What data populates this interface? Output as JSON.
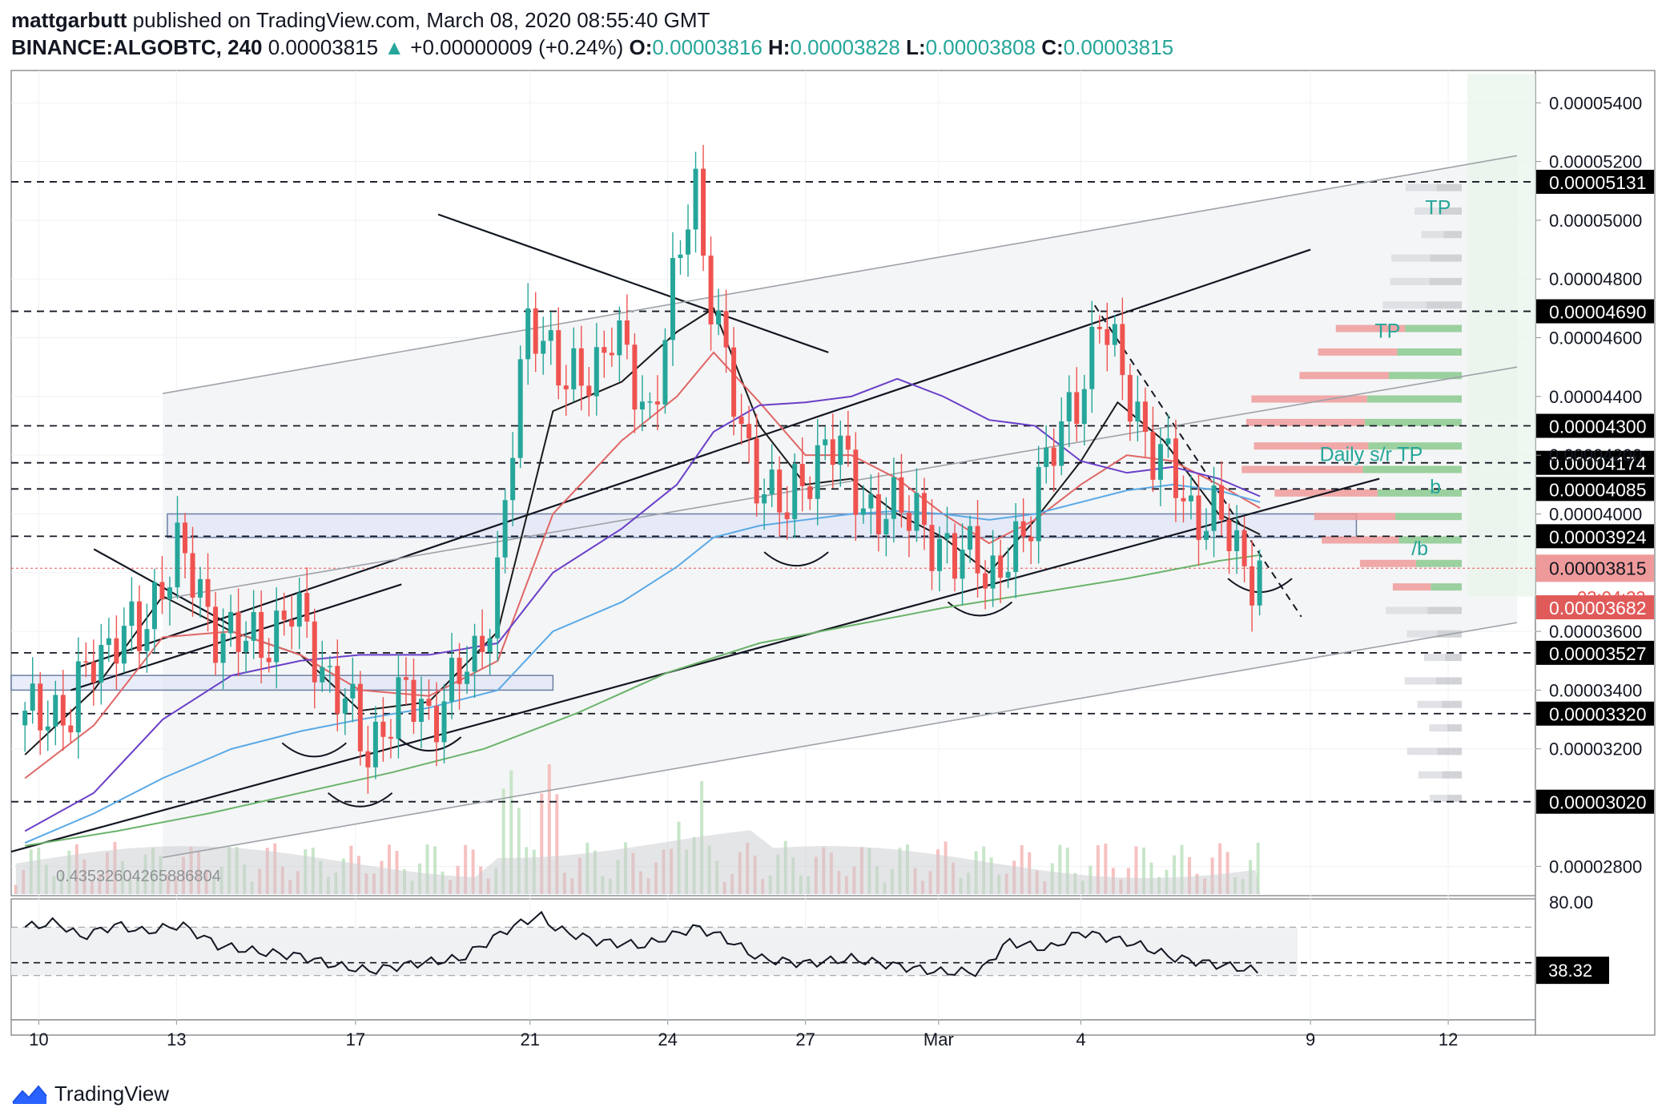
{
  "header": {
    "publisher": "mattgarbutt",
    "published_text": "published on TradingView.com, March 08, 2020 08:55:40 GMT",
    "symbol": "BINANCE:ALGOBTC, 240",
    "last": "0.00003815",
    "change_arrow": "▲",
    "change": "+0.00000009 (+0.24%)",
    "o_label": "O:",
    "o": "0.00003816",
    "h_label": "H:",
    "h": "0.00003828",
    "l_label": "L:",
    "l": "0.00003808",
    "c_label": "C:",
    "c": "0.00003815"
  },
  "footer": {
    "brand": "TradingView",
    "logo_icon": "tradingview-logo-icon"
  },
  "colors": {
    "up": "#26a69a",
    "down": "#ef5350",
    "upFaint": "#c8e6c9",
    "downFaint": "#f6c1c0",
    "ma_black": "#1a1a1a",
    "ma_red": "#e06666",
    "ma_purple": "#6a3fc8",
    "ma_blue": "#5aa9e6",
    "ma_green": "#6ab36a"
  },
  "chart_data": {
    "type": "candlestick",
    "y_axis_ticks": [
      "0.00005400",
      "0.00005200",
      "0.00005000",
      "0.00004800",
      "0.00004600",
      "0.00004400",
      "0.00004200",
      "0.00004000",
      "0.00003800",
      "0.00003600",
      "0.00003400",
      "0.00003200",
      "0.00002800"
    ],
    "y_range": [
      2.7e-05,
      5.51e-05
    ],
    "x_axis_ticks": [
      {
        "label": "10",
        "t": 0.3
      },
      {
        "label": "13",
        "t": 3.3
      },
      {
        "label": "17",
        "t": 7.2
      },
      {
        "label": "21",
        "t": 11.0
      },
      {
        "label": "24",
        "t": 14.0
      },
      {
        "label": "27",
        "t": 17.0
      },
      {
        "label": "Mar",
        "t": 19.9
      },
      {
        "label": "4",
        "t": 23.0
      },
      {
        "label": "9",
        "t": 28.0
      },
      {
        "label": "12",
        "t": 31.0
      }
    ],
    "levels": [
      {
        "value": 5.131e-05,
        "label": "0.00005131"
      },
      {
        "value": 4.69e-05,
        "label": "0.00004690"
      },
      {
        "value": 4.3e-05,
        "label": "0.00004300"
      },
      {
        "value": 4.174e-05,
        "label": "0.00004174"
      },
      {
        "value": 4.085e-05,
        "label": "0.00004085"
      },
      {
        "value": 3.924e-05,
        "label": "0.00003924"
      },
      {
        "value": 3.527e-05,
        "label": "0.00003527"
      },
      {
        "value": 3.32e-05,
        "label": "0.00003320"
      },
      {
        "value": 3.02e-05,
        "label": "0.00003020"
      }
    ],
    "current_price": {
      "value": 3.815e-05,
      "label": "0.00003815",
      "countdown": "03:04:23"
    },
    "low_marker": {
      "value": 3.682e-05,
      "label": "0.00003682"
    },
    "annotations": [
      {
        "text": "TP",
        "t": 30.5,
        "y": 5.02e-05
      },
      {
        "text": "TP",
        "t": 29.4,
        "y": 4.6e-05
      },
      {
        "text": "Daily s/r TP",
        "t": 28.2,
        "y": 4.18e-05
      },
      {
        "text": "b",
        "t": 30.6,
        "y": 4.07e-05
      },
      {
        "text": "/b",
        "t": 30.2,
        "y": 3.86e-05
      }
    ],
    "volume_label": "0.43532604265886804",
    "rsi": {
      "ticks": [
        "80.00"
      ],
      "last": "38.32",
      "upper": 70,
      "lower": 30
    },
    "price_path": [
      [
        0.0,
        3.28e-05
      ],
      [
        0.5,
        3.36e-05
      ],
      [
        1.0,
        3.3e-05
      ],
      [
        1.5,
        3.52e-05
      ],
      [
        2.0,
        3.6e-05
      ],
      [
        2.5,
        3.56e-05
      ],
      [
        3.0,
        3.8e-05
      ],
      [
        3.3,
        3.88e-05
      ],
      [
        3.7,
        3.74e-05
      ],
      [
        4.2,
        3.62e-05
      ],
      [
        4.8,
        3.54e-05
      ],
      [
        5.3,
        3.6e-05
      ],
      [
        5.8,
        3.66e-05
      ],
      [
        6.3,
        3.54e-05
      ],
      [
        6.7,
        3.44e-05
      ],
      [
        7.1,
        3.3e-05
      ],
      [
        7.4,
        3.18e-05
      ],
      [
        7.8,
        3.3e-05
      ],
      [
        8.3,
        3.36e-05
      ],
      [
        8.8,
        3.33e-05
      ],
      [
        9.3,
        3.4e-05
      ],
      [
        9.8,
        3.5e-05
      ],
      [
        10.3,
        3.8e-05
      ],
      [
        10.6,
        4.2e-05
      ],
      [
        11.0,
        4.7e-05
      ],
      [
        11.4,
        4.6e-05
      ],
      [
        11.8,
        4.4e-05
      ],
      [
        12.3,
        4.5e-05
      ],
      [
        12.8,
        4.62e-05
      ],
      [
        13.2,
        4.45e-05
      ],
      [
        13.6,
        4.35e-05
      ],
      [
        14.0,
        4.65e-05
      ],
      [
        14.3,
        4.9e-05
      ],
      [
        14.6,
        5.12e-05
      ],
      [
        14.9,
        4.8e-05
      ],
      [
        15.2,
        4.55e-05
      ],
      [
        15.6,
        4.25e-05
      ],
      [
        16.1,
        4.12e-05
      ],
      [
        16.6,
        3.98e-05
      ],
      [
        17.0,
        4.15e-05
      ],
      [
        17.5,
        4.26e-05
      ],
      [
        18.0,
        4.1e-05
      ],
      [
        18.5,
        4.02e-05
      ],
      [
        19.0,
        3.98e-05
      ],
      [
        19.5,
        4.04e-05
      ],
      [
        19.9,
        3.85e-05
      ],
      [
        20.3,
        3.82e-05
      ],
      [
        20.7,
        3.95e-05
      ],
      [
        21.0,
        3.75e-05
      ],
      [
        21.3,
        3.78e-05
      ],
      [
        21.7,
        3.92e-05
      ],
      [
        22.1,
        4.15e-05
      ],
      [
        22.6,
        4.25e-05
      ],
      [
        23.0,
        4.45e-05
      ],
      [
        23.4,
        4.68e-05
      ],
      [
        23.8,
        4.48e-05
      ],
      [
        24.2,
        4.38e-05
      ],
      [
        24.6,
        4.2e-05
      ],
      [
        25.0,
        4.12e-05
      ],
      [
        25.4,
        4.02e-05
      ],
      [
        25.8,
        4e-05
      ],
      [
        26.2,
        3.92e-05
      ],
      [
        26.6,
        3.83e-05
      ],
      [
        26.9,
        3.82e-05
      ]
    ],
    "moving_averages": [
      {
        "color_key": "ma_black",
        "width": 2,
        "points": [
          [
            0.0,
            3.18e-05
          ],
          [
            1.5,
            3.4e-05
          ],
          [
            3.0,
            3.72e-05
          ],
          [
            4.5,
            3.6e-05
          ],
          [
            6.0,
            3.52e-05
          ],
          [
            7.3,
            3.33e-05
          ],
          [
            8.8,
            3.36e-05
          ],
          [
            10.3,
            3.6e-05
          ],
          [
            11.5,
            4.35e-05
          ],
          [
            13.0,
            4.45e-05
          ],
          [
            14.2,
            4.62e-05
          ],
          [
            15.0,
            4.7e-05
          ],
          [
            16.0,
            4.3e-05
          ],
          [
            17.0,
            4.1e-05
          ],
          [
            18.0,
            4.12e-05
          ],
          [
            19.0,
            4e-05
          ],
          [
            20.0,
            3.92e-05
          ],
          [
            21.0,
            3.8e-05
          ],
          [
            22.0,
            3.98e-05
          ],
          [
            23.0,
            4.18e-05
          ],
          [
            23.8,
            4.38e-05
          ],
          [
            24.8,
            4.25e-05
          ],
          [
            26.0,
            4e-05
          ],
          [
            26.9,
            3.93e-05
          ]
        ]
      },
      {
        "color_key": "ma_red",
        "width": 2,
        "points": [
          [
            0.0,
            3.1e-05
          ],
          [
            1.5,
            3.28e-05
          ],
          [
            3.0,
            3.58e-05
          ],
          [
            4.5,
            3.6e-05
          ],
          [
            6.0,
            3.52e-05
          ],
          [
            7.3,
            3.4e-05
          ],
          [
            8.8,
            3.38e-05
          ],
          [
            10.3,
            3.5e-05
          ],
          [
            11.5,
            4e-05
          ],
          [
            13.0,
            4.25e-05
          ],
          [
            14.2,
            4.4e-05
          ],
          [
            15.0,
            4.55e-05
          ],
          [
            16.0,
            4.38e-05
          ],
          [
            17.0,
            4.2e-05
          ],
          [
            18.0,
            4.2e-05
          ],
          [
            19.0,
            4.12e-05
          ],
          [
            20.0,
            4e-05
          ],
          [
            21.0,
            3.9e-05
          ],
          [
            22.0,
            3.98e-05
          ],
          [
            23.0,
            4.1e-05
          ],
          [
            24.0,
            4.2e-05
          ],
          [
            25.0,
            4.18e-05
          ],
          [
            26.0,
            4.1e-05
          ],
          [
            26.9,
            4.02e-05
          ]
        ]
      },
      {
        "color_key": "ma_purple",
        "width": 2,
        "points": [
          [
            0.0,
            2.92e-05
          ],
          [
            1.5,
            3.05e-05
          ],
          [
            3.0,
            3.3e-05
          ],
          [
            4.5,
            3.45e-05
          ],
          [
            6.0,
            3.5e-05
          ],
          [
            7.3,
            3.52e-05
          ],
          [
            8.8,
            3.52e-05
          ],
          [
            10.3,
            3.56e-05
          ],
          [
            11.5,
            3.8e-05
          ],
          [
            13.0,
            3.95e-05
          ],
          [
            14.2,
            4.1e-05
          ],
          [
            15.0,
            4.28e-05
          ],
          [
            16.0,
            4.37e-05
          ],
          [
            17.0,
            4.38e-05
          ],
          [
            18.0,
            4.4e-05
          ],
          [
            19.0,
            4.46e-05
          ],
          [
            20.0,
            4.4e-05
          ],
          [
            21.0,
            4.32e-05
          ],
          [
            22.0,
            4.3e-05
          ],
          [
            23.0,
            4.18e-05
          ],
          [
            24.0,
            4.14e-05
          ],
          [
            25.0,
            4.16e-05
          ],
          [
            26.0,
            4.12e-05
          ],
          [
            26.9,
            4.06e-05
          ]
        ]
      },
      {
        "color_key": "ma_blue",
        "width": 2,
        "points": [
          [
            0.0,
            2.88e-05
          ],
          [
            1.5,
            2.98e-05
          ],
          [
            3.0,
            3.1e-05
          ],
          [
            4.5,
            3.2e-05
          ],
          [
            6.0,
            3.26e-05
          ],
          [
            7.3,
            3.3e-05
          ],
          [
            8.8,
            3.34e-05
          ],
          [
            10.3,
            3.4e-05
          ],
          [
            11.5,
            3.6e-05
          ],
          [
            13.0,
            3.7e-05
          ],
          [
            14.2,
            3.82e-05
          ],
          [
            15.0,
            3.92e-05
          ],
          [
            16.0,
            3.96e-05
          ],
          [
            17.0,
            3.98e-05
          ],
          [
            18.0,
            4e-05
          ],
          [
            19.0,
            4.01e-05
          ],
          [
            20.0,
            4e-05
          ],
          [
            21.0,
            3.98e-05
          ],
          [
            22.0,
            4e-05
          ],
          [
            23.0,
            4.04e-05
          ],
          [
            24.0,
            4.08e-05
          ],
          [
            25.0,
            4.1e-05
          ],
          [
            26.0,
            4.08e-05
          ],
          [
            26.9,
            4.04e-05
          ]
        ]
      },
      {
        "color_key": "ma_green",
        "width": 2,
        "points": [
          [
            0.0,
            2.87e-05
          ],
          [
            2.0,
            2.92e-05
          ],
          [
            4.0,
            2.98e-05
          ],
          [
            6.0,
            3.05e-05
          ],
          [
            8.0,
            3.12e-05
          ],
          [
            10.0,
            3.2e-05
          ],
          [
            12.0,
            3.32e-05
          ],
          [
            14.0,
            3.46e-05
          ],
          [
            16.0,
            3.56e-05
          ],
          [
            18.0,
            3.62e-05
          ],
          [
            20.0,
            3.68e-05
          ],
          [
            22.0,
            3.73e-05
          ],
          [
            24.0,
            3.78e-05
          ],
          [
            26.0,
            3.84e-05
          ],
          [
            26.9,
            3.86e-05
          ]
        ]
      }
    ],
    "trendlines": [
      {
        "kind": "solid",
        "from": [
          -0.3,
          2.85e-05
        ],
        "to": [
          29.5,
          4.12e-05
        ]
      },
      {
        "kind": "solid",
        "from": [
          1.2,
          3.48e-05
        ],
        "to": [
          28.0,
          4.9e-05
        ]
      },
      {
        "kind": "solid",
        "from": [
          9.0,
          5.02e-05
        ],
        "to": [
          17.5,
          4.55e-05
        ]
      },
      {
        "kind": "solid",
        "from": [
          1.5,
          3.88e-05
        ],
        "to": [
          4.5,
          3.62e-05
        ]
      },
      {
        "kind": "solid",
        "from": [
          1.0,
          3.4e-05
        ],
        "to": [
          8.2,
          3.76e-05
        ]
      },
      {
        "kind": "faint",
        "from": [
          3.0,
          4.41e-05
        ],
        "to": [
          32.5,
          5.22e-05
        ]
      },
      {
        "kind": "faint",
        "from": [
          3.0,
          2.83e-05
        ],
        "to": [
          32.5,
          3.63e-05
        ]
      },
      {
        "kind": "faint",
        "from": [
          3.0,
          3.71e-05
        ],
        "to": [
          32.5,
          4.5e-05
        ]
      },
      {
        "kind": "dashed",
        "from": [
          23.3,
          4.71e-05
        ],
        "to": [
          27.8,
          3.65e-05
        ]
      }
    ],
    "boxes": [
      {
        "t0": 3.1,
        "t1": 29.0,
        "y0": 3.92e-05,
        "y1": 4e-05
      },
      {
        "t0": -0.3,
        "t1": 11.5,
        "y0": 3.4e-05,
        "y1": 3.45e-05
      }
    ],
    "arcs": [
      {
        "t": 6.3,
        "y": 3.22e-05
      },
      {
        "t": 7.3,
        "y": 3.05e-05
      },
      {
        "t": 8.8,
        "y": 3.24e-05
      },
      {
        "t": 16.8,
        "y": 3.87e-05
      },
      {
        "t": 20.8,
        "y": 3.7e-05
      },
      {
        "t": 26.9,
        "y": 3.78e-05
      }
    ],
    "rsi_path": [
      [
        0,
        70
      ],
      [
        0.7,
        74
      ],
      [
        1.2,
        62
      ],
      [
        2.0,
        72
      ],
      [
        2.6,
        66
      ],
      [
        3.4,
        72
      ],
      [
        4.2,
        55
      ],
      [
        5.0,
        50
      ],
      [
        6.0,
        46
      ],
      [
        6.8,
        38
      ],
      [
        7.5,
        34
      ],
      [
        8.5,
        40
      ],
      [
        9.5,
        44
      ],
      [
        10.5,
        68
      ],
      [
        11.2,
        80
      ],
      [
        11.6,
        68
      ],
      [
        12.5,
        58
      ],
      [
        13.5,
        55
      ],
      [
        14.6,
        70
      ],
      [
        15.2,
        62
      ],
      [
        16.0,
        44
      ],
      [
        17.0,
        40
      ],
      [
        18.0,
        44
      ],
      [
        19.0,
        38
      ],
      [
        19.9,
        33
      ],
      [
        20.8,
        33
      ],
      [
        21.4,
        58
      ],
      [
        22.3,
        52
      ],
      [
        23.0,
        66
      ],
      [
        23.5,
        62
      ],
      [
        24.2,
        56
      ],
      [
        25.0,
        45
      ],
      [
        25.8,
        40
      ],
      [
        26.5,
        36
      ],
      [
        26.9,
        33
      ]
    ]
  }
}
